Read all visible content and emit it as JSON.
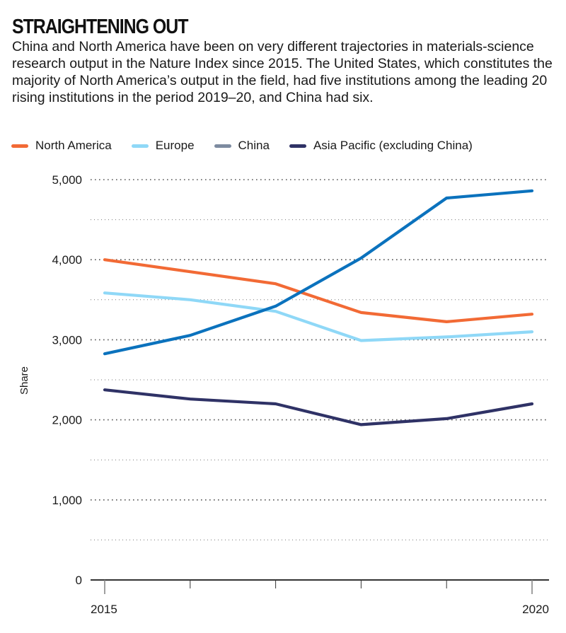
{
  "header": {
    "title": "STRAIGHTENING OUT",
    "subtitle": "China and North America have been on very different trajectories in materials-science research output in the Nature Index since 2015. The United States, which constitutes the majority of North America’s output in the field, had five institutions among the leading 20 rising institutions in the period 2019–20, and China had six."
  },
  "legend": [
    {
      "label": "North America",
      "color": "#f26a35"
    },
    {
      "label": "Europe",
      "color": "#8fd8f7"
    },
    {
      "label": "China",
      "color": "#7d8ba0"
    },
    {
      "label": "Asia Pacific (excluding China)",
      "color": "#2f3266"
    }
  ],
  "chart_data": {
    "type": "line",
    "title": "STRAIGHTENING OUT",
    "xlabel": "",
    "ylabel": "Share",
    "x": [
      2015,
      2016,
      2017,
      2018,
      2019,
      2020
    ],
    "x_tick_labels": [
      "2015",
      "",
      "",
      "",
      "",
      "2020"
    ],
    "ylim": [
      0,
      5000
    ],
    "y_ticks": [
      0,
      1000,
      2000,
      3000,
      4000,
      5000
    ],
    "y_tick_labels": [
      "0",
      "1,000",
      "2,000",
      "3,000",
      "4,000",
      "5,000"
    ],
    "minor_gridlines": [
      500,
      1500,
      2500,
      3500,
      4500
    ],
    "grid": true,
    "legend_position": "top-left",
    "series": [
      {
        "name": "North America",
        "color": "#f26a35",
        "values": [
          4000,
          3850,
          3700,
          3340,
          3225,
          3320
        ]
      },
      {
        "name": "Europe",
        "color": "#8fd8f7",
        "values": [
          3585,
          3500,
          3355,
          2990,
          3035,
          3100
        ]
      },
      {
        "name": "China",
        "color": "#0b72bd",
        "values": [
          2825,
          3055,
          3420,
          4020,
          4770,
          4860
        ]
      },
      {
        "name": "Asia Pacific (excluding China)",
        "color": "#2f3266",
        "values": [
          2375,
          2260,
          2200,
          1940,
          2015,
          2200
        ]
      }
    ]
  }
}
